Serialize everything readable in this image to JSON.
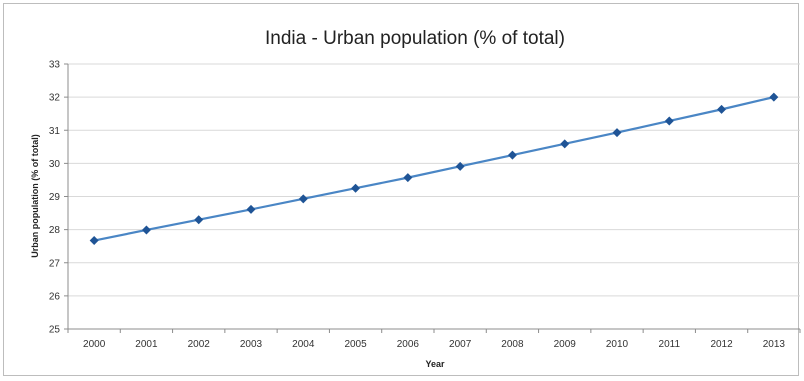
{
  "chart_data": {
    "type": "line",
    "title": "India - Urban population (% of total)",
    "xlabel": "Year",
    "ylabel": "Urban population (% of total)",
    "categories": [
      "2000",
      "2001",
      "2002",
      "2003",
      "2004",
      "2005",
      "2006",
      "2007",
      "2008",
      "2009",
      "2010",
      "2011",
      "2012",
      "2013"
    ],
    "series": [
      {
        "values": [
          27.67,
          27.99,
          28.3,
          28.61,
          28.93,
          29.25,
          29.57,
          29.91,
          30.25,
          30.59,
          30.93,
          31.28,
          31.63,
          32.0
        ]
      }
    ],
    "ylim": [
      25,
      33
    ],
    "yticks": [
      25,
      26,
      27,
      28,
      29,
      30,
      31,
      32,
      33
    ],
    "grid": true,
    "legend": "none",
    "colors": {
      "line": "#4a86c5",
      "marker": "#1f5496",
      "grid": "#d9d9d9",
      "axis": "#8c8c8c"
    }
  }
}
